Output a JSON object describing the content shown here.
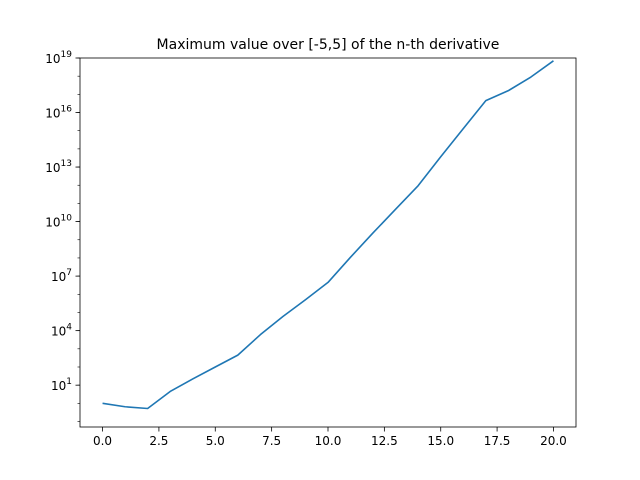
{
  "chart_data": {
    "type": "line",
    "title": "Maximum value over [-5,5] of the n-th derivative",
    "xlabel": "",
    "ylabel": "",
    "yscale": "log",
    "xlim": [
      -1,
      21
    ],
    "ylim": [
      0.05,
      1e+19
    ],
    "x_ticks": [
      0,
      2.5,
      5,
      7.5,
      10,
      12.5,
      15,
      17.5,
      20
    ],
    "x_tick_labels": [
      "0.0",
      "2.5",
      "5.0",
      "7.5",
      "10.0",
      "12.5",
      "15.0",
      "17.5",
      "20.0"
    ],
    "y_tick_exponents": [
      1,
      4,
      7,
      10,
      13,
      16,
      19
    ],
    "grid": false,
    "colors": {
      "line": "#1f77b4",
      "axes": "#000000"
    },
    "series": [
      {
        "x": [
          0,
          1,
          2,
          3,
          4,
          5,
          6,
          7,
          8,
          9,
          10,
          11,
          12,
          13,
          14,
          15,
          16,
          17,
          18,
          19,
          20
        ],
        "y": [
          1,
          0.65,
          0.52,
          4.5,
          22,
          100,
          450,
          6000,
          60000,
          500000,
          4500000,
          110000000.0,
          2400000000.0,
          48000000000.0,
          950000000000.0,
          37000000000000.0,
          1300000000000000.0,
          4.5e+16,
          1.6e+17,
          9e+17,
          7e+18
        ]
      }
    ]
  }
}
